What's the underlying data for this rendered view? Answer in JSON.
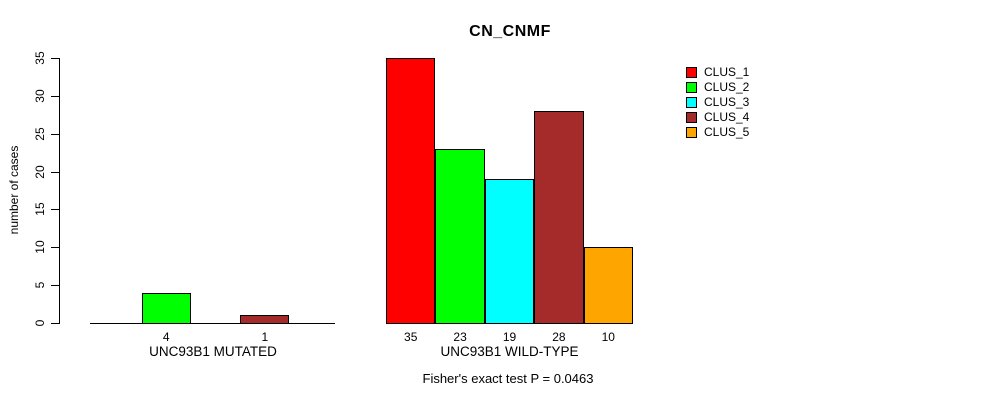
{
  "chart_data": {
    "type": "bar",
    "title": "CN_CNMF",
    "ylabel": "number of cases",
    "xlabel": "",
    "ylim": [
      0,
      35
    ],
    "yticks": [
      0,
      5,
      10,
      15,
      20,
      25,
      30,
      35
    ],
    "grid": false,
    "legend_position": "right",
    "series_names": [
      "CLUS_1",
      "CLUS_2",
      "CLUS_3",
      "CLUS_4",
      "CLUS_5"
    ],
    "series_colors": [
      "#ff0000",
      "#00ff00",
      "#00ffff",
      "#a52a2a",
      "#ffa500"
    ],
    "groups": [
      {
        "label": "UNC93B1 MUTATED",
        "values": [
          0,
          4,
          0,
          1,
          0
        ],
        "bar_labels": [
          "",
          "4",
          "",
          "1",
          ""
        ]
      },
      {
        "label": "UNC93B1 WILD-TYPE",
        "values": [
          35,
          23,
          19,
          28,
          10
        ],
        "bar_labels": [
          "35",
          "23",
          "19",
          "28",
          "10"
        ]
      }
    ],
    "annotation": "Fisher's exact test P = 0.0463"
  }
}
